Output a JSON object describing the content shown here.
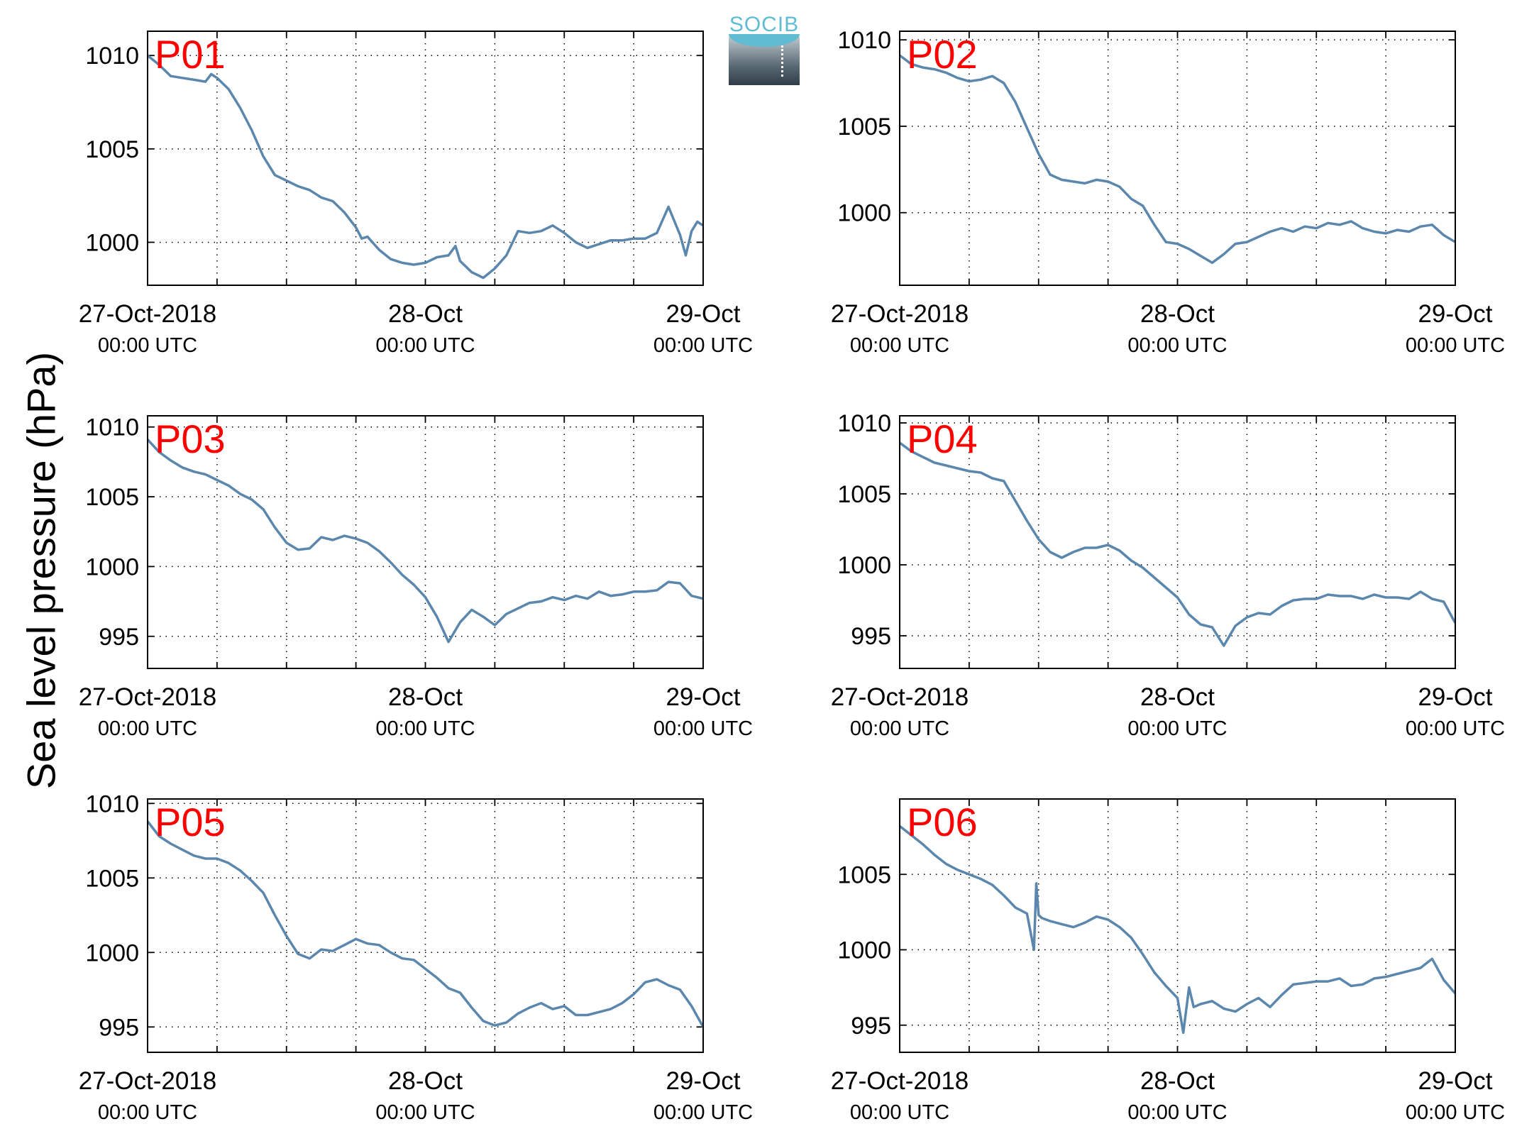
{
  "figure": {
    "ylabel": "Sea level pressure (hPa)",
    "logo_text": "SOCIB",
    "line_color": "#5b87ad",
    "label_color": "#ff0000"
  },
  "chart_data": [
    {
      "type": "line",
      "label": "P01",
      "x_ticks": [
        {
          "t": 0,
          "line1": "27-Oct-2018",
          "line2": "00:00 UTC"
        },
        {
          "t": 24,
          "line1": "28-Oct",
          "line2": "00:00 UTC"
        },
        {
          "t": 48,
          "line1": "29-Oct",
          "line2": "00:00 UTC"
        }
      ],
      "xlim": [
        0,
        48
      ],
      "ylim": [
        997.7,
        1011.3
      ],
      "yticks": [
        1000,
        1005,
        1010
      ],
      "grid": true,
      "x": [
        0,
        1,
        2,
        3,
        4,
        5,
        5.5,
        6,
        7,
        8,
        9,
        10,
        11,
        12,
        13,
        14,
        15,
        16,
        17,
        18,
        18.5,
        19,
        20,
        21,
        22,
        23,
        24,
        25,
        26,
        26.6,
        27,
        28,
        29,
        30,
        31,
        32,
        33,
        34,
        35,
        36,
        37,
        38,
        39,
        40,
        41,
        42,
        42.5,
        43,
        44,
        45,
        46,
        46.5,
        47,
        47.5,
        48
      ],
      "y": [
        1010.0,
        1009.5,
        1008.9,
        1008.8,
        1008.7,
        1008.6,
        1009.0,
        1008.8,
        1008.2,
        1007.2,
        1006.0,
        1004.6,
        1003.6,
        1003.3,
        1003.0,
        1002.8,
        1002.4,
        1002.2,
        1001.6,
        1000.8,
        1000.2,
        1000.3,
        999.6,
        999.1,
        998.9,
        998.8,
        998.9,
        999.2,
        999.3,
        999.8,
        999.0,
        998.4,
        998.1,
        998.6,
        999.3,
        1000.6,
        1000.5,
        1000.6,
        1000.9,
        1000.5,
        1000.0,
        999.7,
        999.9,
        1000.1,
        1000.1,
        1000.2,
        1000.2,
        1000.2,
        1000.5,
        1001.9,
        1000.4,
        999.3,
        1000.6,
        1001.1,
        1000.9
      ]
    },
    {
      "type": "line",
      "label": "P02",
      "x_ticks": [
        {
          "t": 0,
          "line1": "27-Oct-2018",
          "line2": "00:00 UTC"
        },
        {
          "t": 24,
          "line1": "28-Oct",
          "line2": "00:00 UTC"
        },
        {
          "t": 48,
          "line1": "29-Oct",
          "line2": "00:00 UTC"
        }
      ],
      "xlim": [
        0,
        48
      ],
      "ylim": [
        995.8,
        1010.5
      ],
      "yticks": [
        1000,
        1005,
        1010
      ],
      "grid": true,
      "x": [
        0,
        1,
        2,
        3,
        4,
        5,
        6,
        7,
        8,
        9,
        10,
        11,
        12,
        13,
        14,
        15,
        16,
        17,
        18,
        19,
        20,
        21,
        22,
        23,
        24,
        25,
        26,
        27,
        28,
        29,
        30,
        31,
        32,
        33,
        34,
        35,
        36,
        37,
        38,
        39,
        40,
        41,
        42,
        43,
        44,
        45,
        46,
        47,
        48
      ],
      "y": [
        1009.1,
        1008.6,
        1008.4,
        1008.3,
        1008.1,
        1007.8,
        1007.6,
        1007.7,
        1007.9,
        1007.5,
        1006.4,
        1004.9,
        1003.4,
        1002.2,
        1001.9,
        1001.8,
        1001.7,
        1001.9,
        1001.8,
        1001.5,
        1000.8,
        1000.4,
        999.3,
        998.3,
        998.2,
        997.9,
        997.5,
        997.1,
        997.6,
        998.2,
        998.3,
        998.6,
        998.9,
        999.1,
        998.9,
        999.2,
        999.1,
        999.4,
        999.3,
        999.5,
        999.1,
        998.9,
        998.8,
        999.0,
        998.9,
        999.2,
        999.3,
        998.7,
        998.3
      ]
    },
    {
      "type": "line",
      "label": "P03",
      "x_ticks": [
        {
          "t": 0,
          "line1": "27-Oct-2018",
          "line2": "00:00 UTC"
        },
        {
          "t": 24,
          "line1": "28-Oct",
          "line2": "00:00 UTC"
        },
        {
          "t": 48,
          "line1": "29-Oct",
          "line2": "00:00 UTC"
        }
      ],
      "xlim": [
        0,
        48
      ],
      "ylim": [
        992.7,
        1010.8
      ],
      "yticks": [
        995,
        1000,
        1005,
        1010
      ],
      "grid": true,
      "x": [
        0,
        1,
        2,
        3,
        4,
        5,
        6,
        7,
        8,
        9,
        10,
        11,
        12,
        13,
        14,
        15,
        16,
        17,
        18,
        19,
        20,
        21,
        22,
        23,
        24,
        25,
        26,
        27,
        28,
        29,
        30,
        31,
        32,
        33,
        34,
        35,
        36,
        37,
        38,
        39,
        40,
        41,
        42,
        43,
        44,
        45,
        46,
        47,
        48
      ],
      "y": [
        1009.1,
        1008.2,
        1007.6,
        1007.1,
        1006.8,
        1006.6,
        1006.2,
        1005.8,
        1005.2,
        1004.8,
        1004.1,
        1002.8,
        1001.7,
        1001.2,
        1001.3,
        1002.1,
        1001.9,
        1002.2,
        1002.0,
        1001.7,
        1001.1,
        1000.3,
        999.4,
        998.7,
        997.8,
        996.4,
        994.6,
        996.0,
        996.9,
        996.4,
        995.8,
        996.6,
        997.0,
        997.4,
        997.5,
        997.8,
        997.6,
        997.9,
        997.7,
        998.2,
        997.9,
        998.0,
        998.2,
        998.2,
        998.3,
        998.9,
        998.8,
        997.9,
        997.7
      ]
    },
    {
      "type": "line",
      "label": "P04",
      "x_ticks": [
        {
          "t": 0,
          "line1": "27-Oct-2018",
          "line2": "00:00 UTC"
        },
        {
          "t": 24,
          "line1": "28-Oct",
          "line2": "00:00 UTC"
        },
        {
          "t": 48,
          "line1": "29-Oct",
          "line2": "00:00 UTC"
        }
      ],
      "xlim": [
        0,
        48
      ],
      "ylim": [
        992.7,
        1010.5
      ],
      "yticks": [
        995,
        1000,
        1005,
        1010
      ],
      "grid": true,
      "x": [
        0,
        1,
        2,
        3,
        4,
        5,
        6,
        7,
        8,
        9,
        10,
        11,
        12,
        13,
        14,
        15,
        16,
        17,
        18,
        19,
        20,
        21,
        22,
        23,
        24,
        25,
        26,
        27,
        28,
        29,
        30,
        31,
        32,
        33,
        34,
        35,
        36,
        37,
        38,
        39,
        40,
        41,
        42,
        43,
        44,
        45,
        46,
        47,
        48
      ],
      "y": [
        1008.6,
        1008.0,
        1007.6,
        1007.2,
        1007.0,
        1006.8,
        1006.6,
        1006.5,
        1006.1,
        1005.9,
        1004.5,
        1003.1,
        1001.8,
        1000.9,
        1000.5,
        1000.9,
        1001.2,
        1001.2,
        1001.4,
        1001.0,
        1000.3,
        999.8,
        999.1,
        998.4,
        997.7,
        996.5,
        995.8,
        995.6,
        994.3,
        995.7,
        996.3,
        996.6,
        996.5,
        997.1,
        997.5,
        997.6,
        997.6,
        997.9,
        997.8,
        997.8,
        997.6,
        997.9,
        997.7,
        997.7,
        997.6,
        998.1,
        997.6,
        997.4,
        995.9
      ]
    },
    {
      "type": "line",
      "label": "P05",
      "x_ticks": [
        {
          "t": 0,
          "line1": "27-Oct-2018",
          "line2": "00:00 UTC"
        },
        {
          "t": 24,
          "line1": "28-Oct",
          "line2": "00:00 UTC"
        },
        {
          "t": 48,
          "line1": "29-Oct",
          "line2": "00:00 UTC"
        }
      ],
      "xlim": [
        0,
        48
      ],
      "ylim": [
        993.3,
        1010.3
      ],
      "yticks": [
        995,
        1000,
        1005,
        1010
      ],
      "grid": true,
      "x": [
        0,
        1,
        2,
        3,
        4,
        5,
        6,
        7,
        8,
        9,
        10,
        11,
        12,
        13,
        14,
        15,
        16,
        17,
        18,
        19,
        20,
        21,
        22,
        23,
        24,
        25,
        26,
        27,
        28,
        29,
        30,
        31,
        32,
        33,
        34,
        35,
        36,
        37,
        38,
        39,
        40,
        41,
        42,
        43,
        44,
        45,
        46,
        47,
        48
      ],
      "y": [
        1008.8,
        1007.8,
        1007.3,
        1006.9,
        1006.5,
        1006.3,
        1006.3,
        1006.0,
        1005.5,
        1004.8,
        1004.0,
        1002.5,
        1001.1,
        999.9,
        999.6,
        1000.2,
        1000.1,
        1000.5,
        1000.9,
        1000.6,
        1000.5,
        1000.0,
        999.6,
        999.5,
        998.9,
        998.3,
        997.6,
        997.3,
        996.3,
        995.4,
        995.1,
        995.3,
        995.9,
        996.3,
        996.6,
        996.2,
        996.4,
        995.8,
        995.8,
        996.0,
        996.2,
        996.6,
        997.2,
        998.0,
        998.2,
        997.8,
        997.5,
        996.4,
        995.0
      ]
    },
    {
      "type": "line",
      "label": "P06",
      "x_ticks": [
        {
          "t": 0,
          "line1": "27-Oct-2018",
          "line2": "00:00 UTC"
        },
        {
          "t": 24,
          "line1": "28-Oct",
          "line2": "00:00 UTC"
        },
        {
          "t": 48,
          "line1": "29-Oct",
          "line2": "00:00 UTC"
        }
      ],
      "xlim": [
        0,
        48
      ],
      "ylim": [
        993.2,
        1010.0
      ],
      "yticks": [
        995,
        1000,
        1005
      ],
      "grid": true,
      "x": [
        0,
        1,
        2,
        3,
        4,
        5,
        6,
        7,
        8,
        9,
        10,
        11,
        11.6,
        11.8,
        12,
        12.3,
        13,
        14,
        15,
        16,
        17,
        18,
        19,
        20,
        21,
        22,
        23,
        24,
        24.5,
        25,
        25.4,
        26,
        27,
        28,
        29,
        30,
        31,
        32,
        33,
        34,
        35,
        36,
        37,
        38,
        39,
        40,
        41,
        42,
        43,
        44,
        45,
        46,
        47,
        48
      ],
      "y": [
        1008.2,
        1007.6,
        1007.0,
        1006.3,
        1005.7,
        1005.3,
        1005.0,
        1004.7,
        1004.3,
        1003.6,
        1002.8,
        1002.4,
        1000.0,
        1004.4,
        1002.3,
        1002.1,
        1001.9,
        1001.7,
        1001.5,
        1001.8,
        1002.2,
        1002.0,
        1001.5,
        1000.8,
        999.7,
        998.5,
        997.6,
        996.8,
        994.5,
        997.5,
        996.2,
        996.4,
        996.6,
        996.1,
        995.9,
        996.4,
        996.8,
        996.2,
        997.0,
        997.7,
        997.8,
        997.9,
        997.9,
        998.1,
        997.6,
        997.7,
        998.1,
        998.2,
        998.4,
        998.6,
        998.8,
        999.4,
        998.0,
        997.1
      ]
    }
  ]
}
